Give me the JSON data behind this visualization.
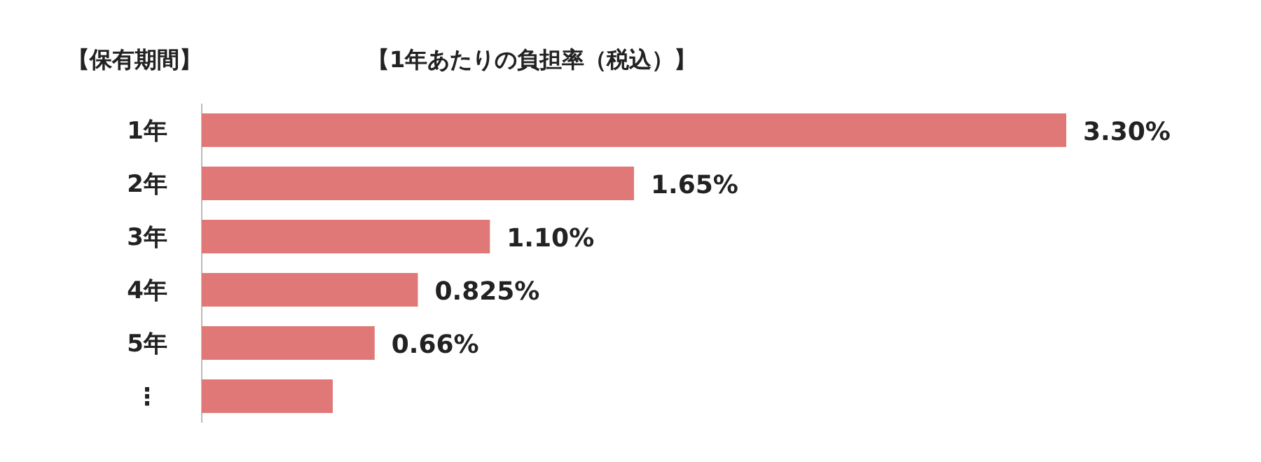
{
  "chart_data": {
    "type": "bar",
    "orientation": "horizontal",
    "title": "【1年あたりの負担率（税込）】",
    "ylabel": "【保有期間】",
    "categories": [
      "1年",
      "2年",
      "3年",
      "4年",
      "5年",
      "⋮"
    ],
    "values": [
      3.3,
      1.65,
      1.1,
      0.825,
      0.66,
      0.5
    ],
    "value_labels": [
      "3.30%",
      "1.65%",
      "1.10%",
      "0.825%",
      "0.66%",
      null
    ],
    "color": "#e07878"
  }
}
